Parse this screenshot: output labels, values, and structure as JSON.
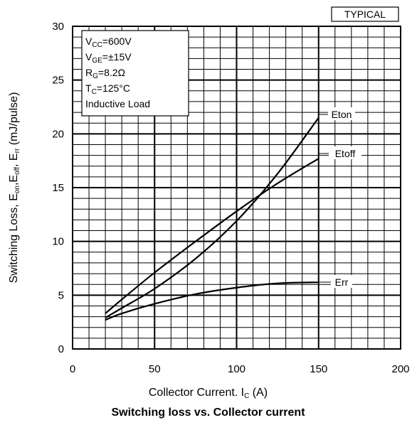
{
  "chart_data": {
    "type": "line",
    "title": "Switching loss vs. Collector current",
    "badge": "TYPICAL",
    "xlabel": {
      "main": "Collector Current. I",
      "sub": "C",
      "unit": " (A)"
    },
    "ylabel": "Switching Loss, Eton,Etoff, Err (mJ/pulse)",
    "xlim": [
      0,
      200
    ],
    "ylim": [
      0,
      30
    ],
    "xticks": [
      0,
      50,
      100,
      150,
      200
    ],
    "yticks": [
      0,
      5,
      10,
      15,
      20,
      25,
      30
    ],
    "grid": true,
    "conditions": [
      {
        "main": "V",
        "sub": "CC",
        "rest": "=600V"
      },
      {
        "main": "V",
        "sub": "GE",
        "rest": "=±15V"
      },
      {
        "main": "R",
        "sub": "G",
        "rest": "=8.2Ω"
      },
      {
        "main": "T",
        "sub": "C",
        "rest": "=125°C"
      },
      {
        "main": "Inductive Load",
        "sub": "",
        "rest": ""
      }
    ],
    "series": [
      {
        "name": "Eton",
        "x": [
          20,
          30,
          50,
          75,
          100,
          125,
          150
        ],
        "values": [
          2.9,
          3.8,
          5.6,
          8.4,
          11.9,
          16.3,
          21.5
        ]
      },
      {
        "name": "Etoff",
        "x": [
          20,
          30,
          50,
          75,
          100,
          125,
          150
        ],
        "values": [
          3.3,
          4.6,
          7.1,
          10.0,
          12.8,
          15.4,
          17.7
        ]
      },
      {
        "name": "Err",
        "x": [
          20,
          30,
          50,
          75,
          100,
          125,
          150
        ],
        "values": [
          2.7,
          3.3,
          4.2,
          5.1,
          5.7,
          6.1,
          6.2
        ]
      }
    ],
    "labels": {
      "ylabel_parts": [
        {
          "t": "Switching Loss, E",
          "sub": false
        },
        {
          "t": "on",
          "sub": true
        },
        {
          "t": ",E",
          "sub": false
        },
        {
          "t": "off",
          "sub": true
        },
        {
          "t": ", E",
          "sub": false
        },
        {
          "t": "rr",
          "sub": true
        },
        {
          "t": " (mJ/pulse)",
          "sub": false
        }
      ]
    }
  }
}
